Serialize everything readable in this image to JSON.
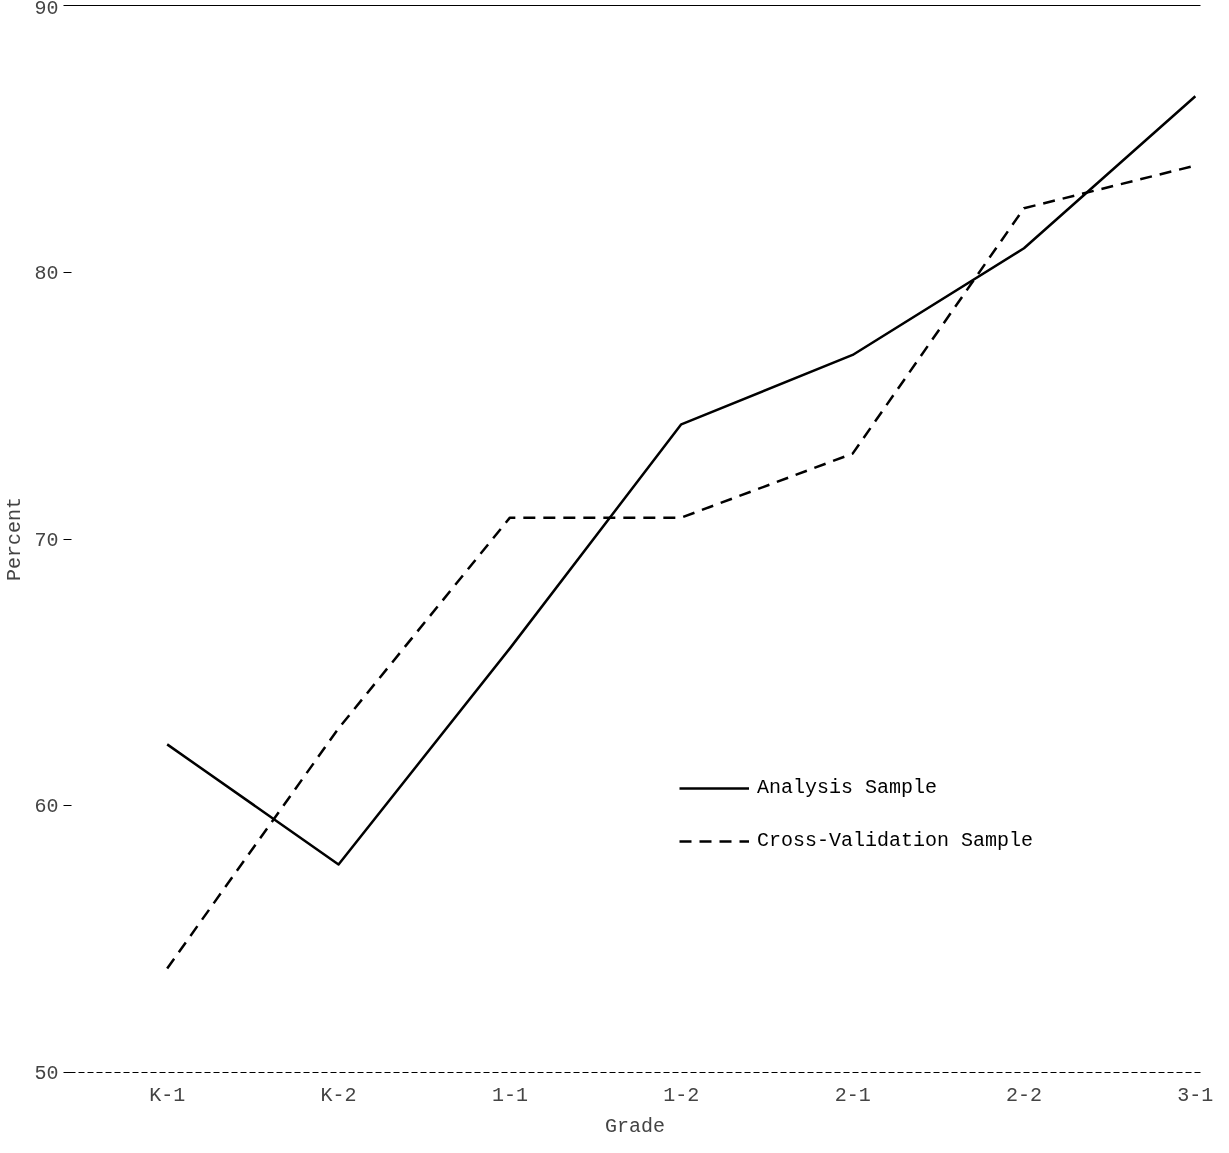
{
  "chart_data": {
    "type": "line",
    "xlabel": "Grade",
    "ylabel": "Percent",
    "categories": [
      "K-1",
      "K-2",
      "1-1",
      "1-2",
      "2-1",
      "2-2",
      "3-1"
    ],
    "series": [
      {
        "name": "Analysis Sample",
        "color": "#000000",
        "line_style": "solid",
        "values": [
          62.3,
          57.8,
          65.9,
          74.3,
          76.9,
          80.9,
          86.6
        ]
      },
      {
        "name": "Cross-Validation Sample",
        "color": "#000000",
        "line_style": "dashed",
        "values": [
          53.9,
          62.9,
          70.8,
          70.8,
          73.2,
          82.4,
          84.0
        ]
      }
    ],
    "ylim": [
      50,
      90
    ],
    "yticks": [
      50,
      60,
      70,
      80,
      90
    ],
    "grid": false,
    "legend": "right",
    "marker": "none"
  }
}
